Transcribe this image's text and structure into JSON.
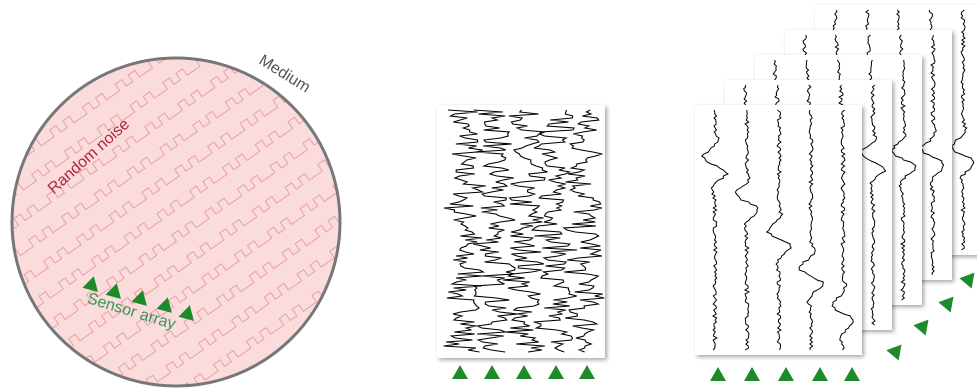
{
  "labels": {
    "medium": "Medium",
    "noise": "Random noise",
    "sensors": "Sensor array"
  }
}
